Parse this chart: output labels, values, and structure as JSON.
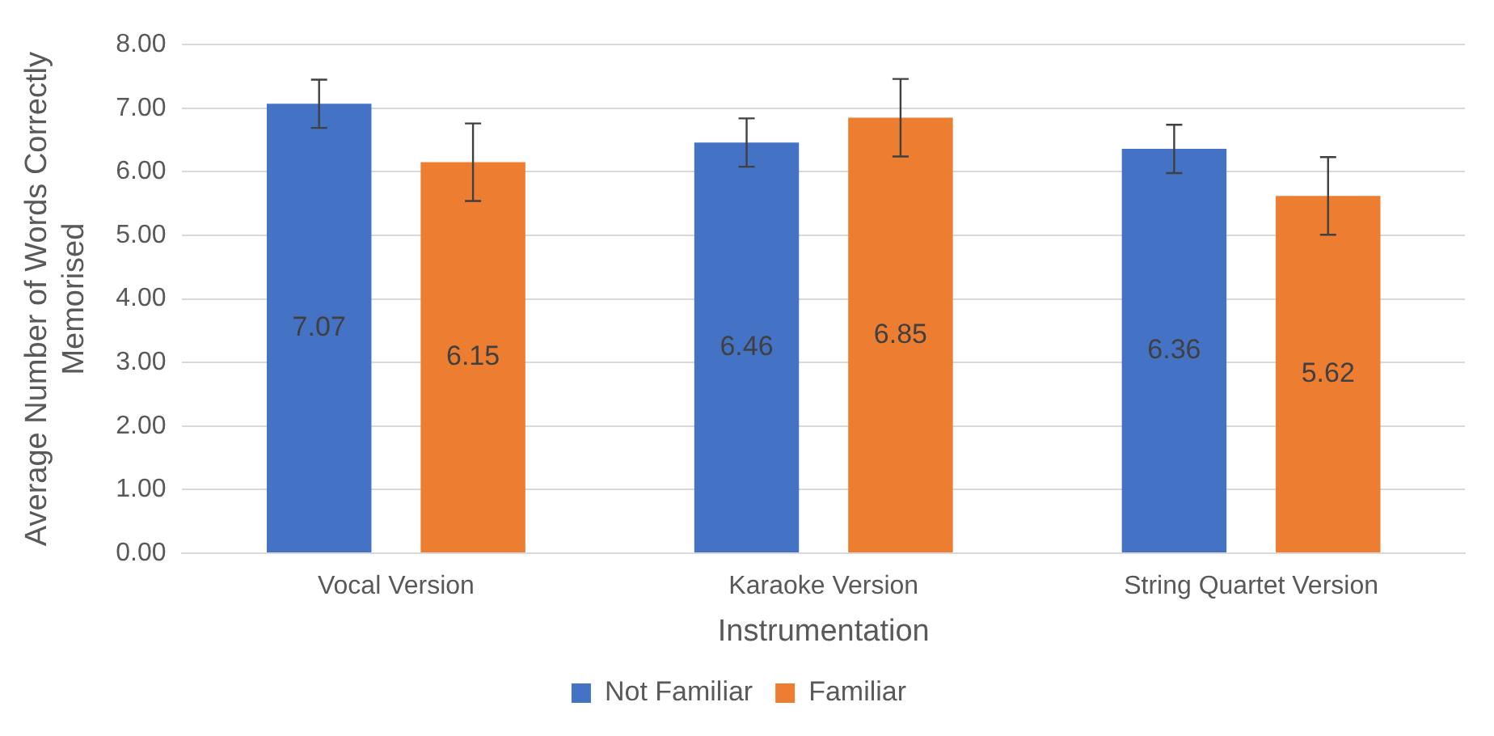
{
  "chart_data": {
    "type": "bar",
    "xlabel": "Instrumentation",
    "ylabel": "Average Number of Words Correctly Memorised",
    "categories": [
      "Vocal Version",
      "Karaoke Version",
      "String Quartet Version"
    ],
    "series": [
      {
        "name": "Not Familiar",
        "color": "#4472c4",
        "values": [
          7.07,
          6.46,
          6.36
        ],
        "errors": [
          0.38,
          0.38,
          0.38
        ]
      },
      {
        "name": "Familiar",
        "color": "#ed7d31",
        "values": [
          6.15,
          6.85,
          5.62
        ],
        "errors": [
          0.61,
          0.61,
          0.61
        ]
      }
    ],
    "ylim": [
      0,
      8
    ],
    "yticks": [
      {
        "value": 0,
        "label": "0.00"
      },
      {
        "value": 1,
        "label": "1.00"
      },
      {
        "value": 2,
        "label": "2.00"
      },
      {
        "value": 3,
        "label": "3.00"
      },
      {
        "value": 4,
        "label": "4.00"
      },
      {
        "value": 5,
        "label": "5.00"
      },
      {
        "value": 6,
        "label": "6.00"
      },
      {
        "value": 7,
        "label": "7.00"
      },
      {
        "value": 8,
        "label": "8.00"
      }
    ],
    "grid": "y",
    "legend": "bottom",
    "data_labels": true
  }
}
